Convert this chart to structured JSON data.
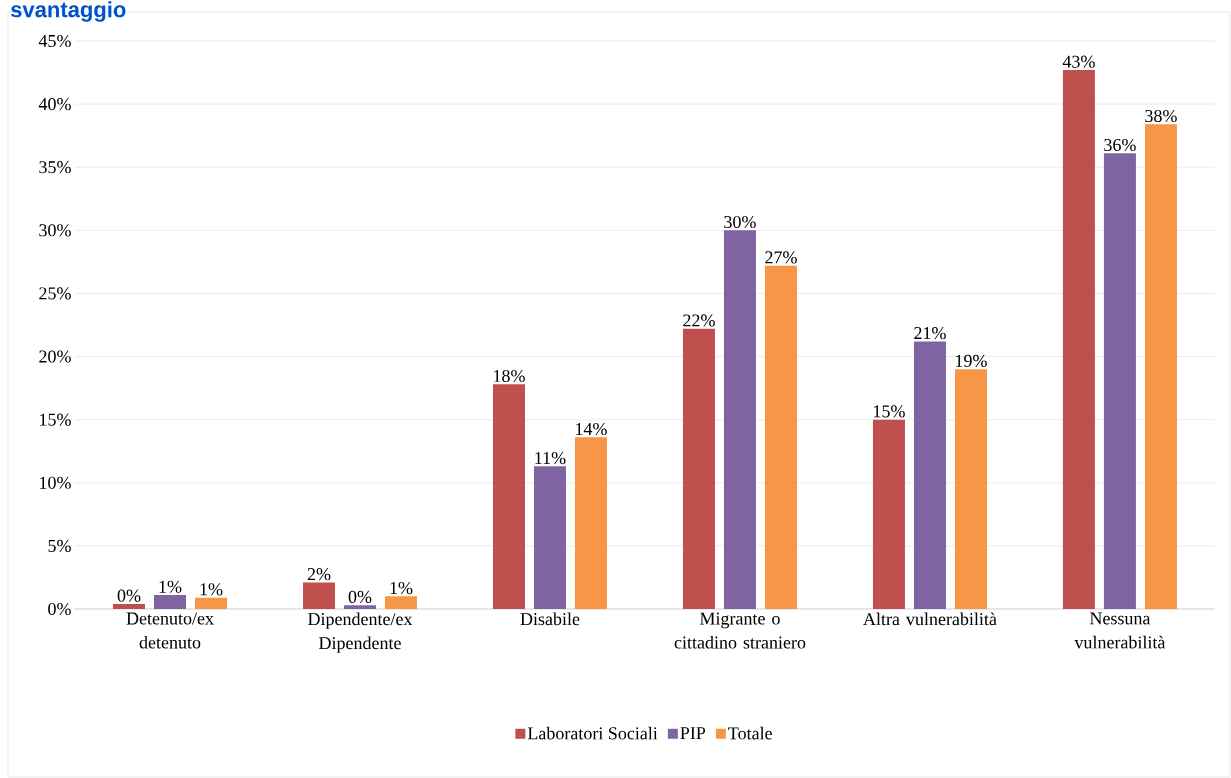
{
  "chart_data": {
    "type": "bar",
    "title": "svantaggio",
    "categories": [
      "Detenuto/ex detenuto",
      "Dipendente/ex Dipendente",
      "Disabile",
      "Migrante o cittadino straniero",
      "Altra vulnerabilità",
      "Nessuna vulnerabilità"
    ],
    "series": [
      {
        "name": "Laboratori Sociali",
        "color": "#c0504d",
        "values": [
          0.4,
          2.1,
          17.8,
          22.2,
          15.0,
          42.7
        ],
        "value_labels": [
          "0%",
          "2%",
          "18%",
          "22%",
          "15%",
          "43%"
        ]
      },
      {
        "name": "PIP",
        "color": "#8064a2",
        "values": [
          1.1,
          0.3,
          11.3,
          30.0,
          21.2,
          36.1
        ],
        "value_labels": [
          "1%",
          "0%",
          "11%",
          "30%",
          "21%",
          "36%"
        ]
      },
      {
        "name": "Totale",
        "color": "#f79646",
        "values": [
          0.9,
          1.0,
          13.6,
          27.2,
          19.0,
          38.4
        ],
        "value_labels": [
          "1%",
          "1%",
          "14%",
          "27%",
          "19%",
          "38%"
        ]
      }
    ],
    "ylim": [
      0,
      45
    ],
    "yticks": [
      {
        "value": 0,
        "label": "0%"
      },
      {
        "value": 5,
        "label": "5%"
      },
      {
        "value": 10,
        "label": "10%"
      },
      {
        "value": 15,
        "label": "15%"
      },
      {
        "value": 20,
        "label": "20%"
      },
      {
        "value": 25,
        "label": "25%"
      },
      {
        "value": 30,
        "label": "30%"
      },
      {
        "value": 35,
        "label": "35%"
      },
      {
        "value": 40,
        "label": "40%"
      },
      {
        "value": 45,
        "label": "45%"
      }
    ],
    "grid": "y",
    "legend": "bottom"
  }
}
